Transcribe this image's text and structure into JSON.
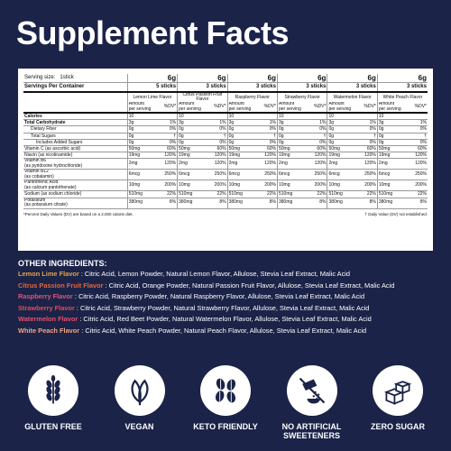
{
  "title": "Supplement Facts",
  "serving": {
    "size_label": "Serving size:",
    "size_value": "1stick",
    "container_label": "Servings Per Container"
  },
  "columns": [
    {
      "flavor": "Lemon Lime Flavor",
      "grams": "6g",
      "sticks": "5 sticks"
    },
    {
      "flavor": "Citrus Passion Fruit Flavor",
      "grams": "6g",
      "sticks": "3 sticks"
    },
    {
      "flavor": "Raspberry Flavor",
      "grams": "6g",
      "sticks": "3 sticks"
    },
    {
      "flavor": "Strawberry Flavor",
      "grams": "6g",
      "sticks": "3 sticks"
    },
    {
      "flavor": "Watermelon Flavor",
      "grams": "6g",
      "sticks": "3 sticks"
    },
    {
      "flavor": "White Peach Flavor",
      "grams": "6g",
      "sticks": "3 sticks"
    }
  ],
  "amount_label": "Amount per serving",
  "dv_label": "%DV*",
  "rows": [
    {
      "name": "Calories",
      "sub": "",
      "style": "bold",
      "amt": "10",
      "dv": ""
    },
    {
      "name": "Total Carbohydrate",
      "sub": "",
      "style": "bold",
      "amt": "3g",
      "dv": "1%"
    },
    {
      "name": "Dietary Fiber",
      "sub": "",
      "style": "ind",
      "amt": "0g",
      "dv": "0%"
    },
    {
      "name": "Total Sugars",
      "sub": "",
      "style": "ind",
      "amt": "0g",
      "dv": "†"
    },
    {
      "name": "Includes Added Sugars",
      "sub": "",
      "style": "ind2",
      "amt": "0g",
      "dv": "0%"
    },
    {
      "name": "Vitamin C (as ascorbic acid)",
      "sub": "",
      "style": "",
      "amt": "50mg",
      "dv": "60%"
    },
    {
      "name": "Niacin (as nicotinamide)",
      "sub": "",
      "style": "",
      "amt": "19mg",
      "dv": "120%"
    },
    {
      "name": "Vitamin B6",
      "sub": "(as pyridoxine hydrochloride)",
      "style": "",
      "amt": "2mg",
      "dv": "120%"
    },
    {
      "name": "Vitamin B12",
      "sub": "(as cobalamin)",
      "style": "",
      "amt": "6mcg",
      "dv": "250%"
    },
    {
      "name": "Pantothenic Acid",
      "sub": "(as calcium pantothenate)",
      "style": "",
      "amt": "10mg",
      "dv": "200%"
    },
    {
      "name": "Sodium (as sodium chloride)",
      "sub": "",
      "style": "",
      "amt": "510mg",
      "dv": "22%"
    },
    {
      "name": "Potassium",
      "sub": "(as potassium citrate)",
      "style": "",
      "amt": "380mg",
      "dv": "8%"
    }
  ],
  "footnote_left": "*Percent Daily Values (DV) are based on a 2,000 calorie diet.",
  "footnote_right": "† Daily Value (DV) not established.",
  "other_title": "OTHER INGREDIENTS:",
  "ingredients": [
    {
      "flavor": "Lemon Lime  Flavor",
      "color": "#e0a24a",
      "text": " : Citric Acid, Lemon Powder, Natural Lemon Flavor, Allulose, Stevia Leaf Extract, Malic Acid"
    },
    {
      "flavor": "Citrus Passion Fruit Flavor",
      "color": "#e8643a",
      "text": " : Citric Acid, Orange Powder, Natural Passion Fruit Flavor, Allulose, Stevia Leaf Extract, Malic Acid"
    },
    {
      "flavor": "Raspberry  Flavor",
      "color": "#e0567a",
      "text": " : Citric Acid, Raspberry Powder, Natural Raspberry Flavor, Allulose, Stevia Leaf Extract, Malic Acid"
    },
    {
      "flavor": "Strawberry  Flavor",
      "color": "#e54a55",
      "text": " : Citric Acid, Strawberry Powder, Natural Strawberry Flavor, Allulose, Stevia Leaf Extract, Malic Acid"
    },
    {
      "flavor": "Watermelon  Flavor",
      "color": "#e6506a",
      "text": " : Citric Acid, Red Beet Powder, Natural Watermelon Flavor, Allulose, Stevia Leaf Extract, Malic Acid"
    },
    {
      "flavor": "White Peach  Flavor",
      "color": "#f0a487",
      "text": " : Citric Acid, White Peach Powder, Natural Peach Flavor, Allulose, Stevia Leaf Extract, Malic Acid"
    }
  ],
  "badges": [
    {
      "label": "GLUTEN FREE",
      "icon": "wheat-icon"
    },
    {
      "label": "VEGAN",
      "icon": "leaves-icon"
    },
    {
      "label": "KETO FRIENDLY",
      "icon": "seeds-icon"
    },
    {
      "label": "NO ARTIFICIAL SWEETENERS",
      "icon": "no-sweetener-icon"
    },
    {
      "label": "ZERO SUGAR",
      "icon": "sugar-cubes-icon"
    }
  ]
}
